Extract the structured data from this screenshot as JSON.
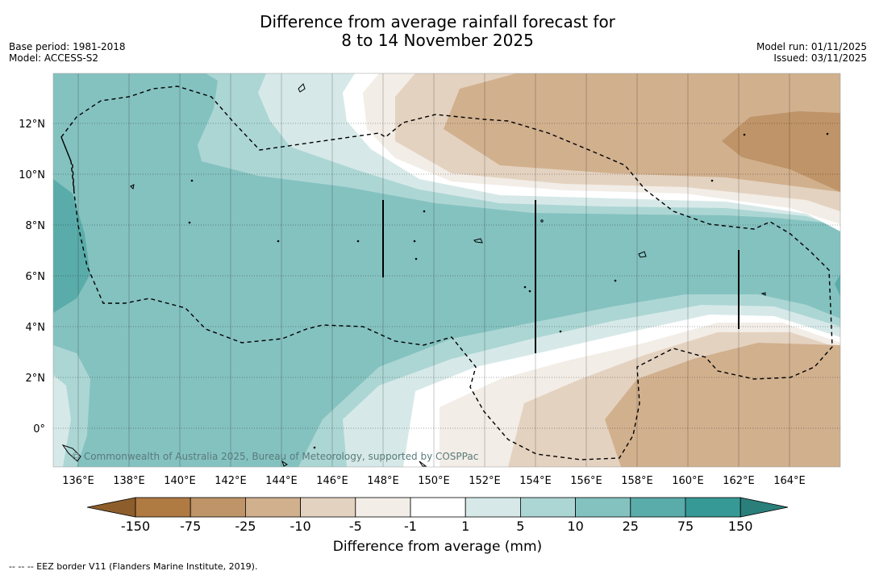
{
  "title_line1": "Difference from average rainfall forecast for",
  "title_line2": "8 to 14 November 2025",
  "base_period": "Base period: 1981-2018",
  "model": "Model: ACCESS-S2",
  "model_run": "Model run: 01/11/2025",
  "issued": "Issued: 03/11/2025",
  "longitude_labels": [
    "136°E",
    "138°E",
    "140°E",
    "142°E",
    "144°E",
    "146°E",
    "148°E",
    "150°E",
    "152°E",
    "154°E",
    "156°E",
    "158°E",
    "160°E",
    "162°E",
    "164°E"
  ],
  "latitude_labels": [
    "12°N",
    "10°N",
    "8°N",
    "6°N",
    "4°N",
    "2°N",
    "0°"
  ],
  "copyright": "© Commonwealth of Australia 2025, Bureau of Meteorology, supported by COSPPac",
  "colorbar": {
    "title": "Difference from average (mm)",
    "tick_labels": [
      "-150",
      "-75",
      "-25",
      "-10",
      "-5",
      "-1",
      "1",
      "5",
      "10",
      "25",
      "75",
      "150"
    ],
    "colors": [
      "#8d5e2b",
      "#b07a43",
      "#bf9468",
      "#d1b08e",
      "#e4d2c0",
      "#f2ede6",
      "#ffffff",
      "#d6e9e8",
      "#acd6d4",
      "#84c2c0",
      "#5aacaa",
      "#379996",
      "#2a7f7b"
    ]
  },
  "legend_note": "--  --  -- EEZ border V11 (Flanders Marine Institute, 2019)."
}
